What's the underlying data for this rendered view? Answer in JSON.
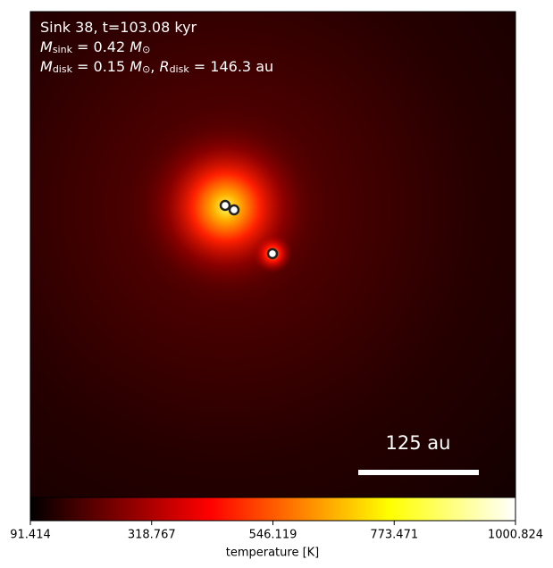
{
  "chart_data": {
    "type": "image",
    "annotation_lines": [
      [
        {
          "text": "Sink 38, t=103.08 kyr",
          "style": "normal"
        }
      ],
      [
        {
          "text": "M",
          "style": "italic"
        },
        {
          "text": "sink",
          "style": "sub"
        },
        {
          "text": " = 0.42 ",
          "style": "normal"
        },
        {
          "text": "M",
          "style": "italic"
        },
        {
          "text": "⊙",
          "style": "sub"
        }
      ],
      [
        {
          "text": "M",
          "style": "italic"
        },
        {
          "text": "disk",
          "style": "sub"
        },
        {
          "text": " = 0.15 ",
          "style": "normal"
        },
        {
          "text": "M",
          "style": "italic"
        },
        {
          "text": "⊙",
          "style": "sub"
        },
        {
          "text": ", ",
          "style": "normal"
        },
        {
          "text": "R",
          "style": "italic"
        },
        {
          "text": "disk",
          "style": "sub"
        },
        {
          "text": " = 146.3 au",
          "style": "normal"
        }
      ]
    ],
    "scale_bar_label": "125 au",
    "colorbar": {
      "label": "temperature [K]",
      "lim": [
        91.414,
        1000.824
      ],
      "ticks": [
        91.414,
        318.767,
        546.119,
        773.471,
        1000.824
      ]
    }
  }
}
